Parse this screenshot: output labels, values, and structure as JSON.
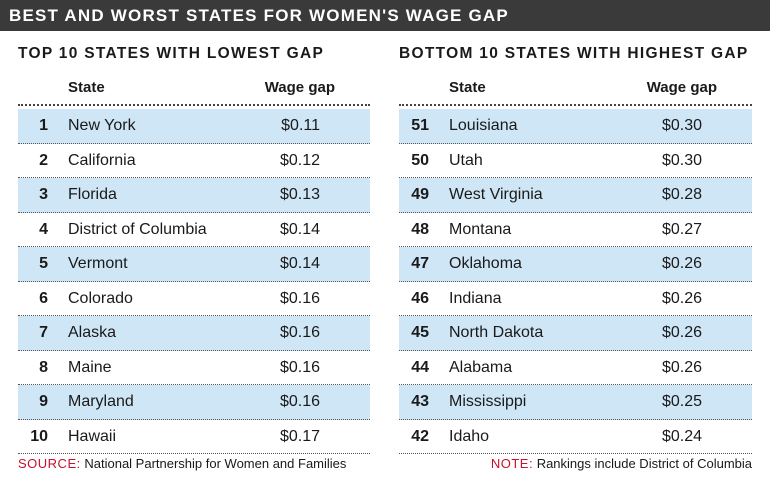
{
  "title": "BEST AND WORST STATES FOR WOMEN'S WAGE GAP",
  "colors": {
    "shade": "#cfe6f6",
    "title_bg": "#3a3a3a",
    "note_red": "#c8102e"
  },
  "left_panel": {
    "title": "TOP 10 STATES WITH LOWEST GAP",
    "col_state": "State",
    "col_gap": "Wage gap",
    "rows": [
      {
        "rank": "1",
        "state": "New York",
        "gap": "$0.11"
      },
      {
        "rank": "2",
        "state": "California",
        "gap": "$0.12"
      },
      {
        "rank": "3",
        "state": "Florida",
        "gap": "$0.13"
      },
      {
        "rank": "4",
        "state": "District of Columbia",
        "gap": "$0.14"
      },
      {
        "rank": "5",
        "state": "Vermont",
        "gap": "$0.14"
      },
      {
        "rank": "6",
        "state": "Colorado",
        "gap": "$0.16"
      },
      {
        "rank": "7",
        "state": "Alaska",
        "gap": "$0.16"
      },
      {
        "rank": "8",
        "state": "Maine",
        "gap": "$0.16"
      },
      {
        "rank": "9",
        "state": "Maryland",
        "gap": "$0.16"
      },
      {
        "rank": "10",
        "state": "Hawaii",
        "gap": "$0.17"
      }
    ]
  },
  "right_panel": {
    "title": "BOTTOM 10 STATES WITH HIGHEST GAP",
    "col_state": "State",
    "col_gap": "Wage gap",
    "rows": [
      {
        "rank": "51",
        "state": "Louisiana",
        "gap": "$0.30"
      },
      {
        "rank": "50",
        "state": "Utah",
        "gap": "$0.30"
      },
      {
        "rank": "49",
        "state": "West Virginia",
        "gap": "$0.28"
      },
      {
        "rank": "48",
        "state": "Montana",
        "gap": "$0.27"
      },
      {
        "rank": "47",
        "state": "Oklahoma",
        "gap": "$0.26"
      },
      {
        "rank": "46",
        "state": "Indiana",
        "gap": "$0.26"
      },
      {
        "rank": "45",
        "state": "North Dakota",
        "gap": "$0.26"
      },
      {
        "rank": "44",
        "state": "Alabama",
        "gap": "$0.26"
      },
      {
        "rank": "43",
        "state": "Mississippi",
        "gap": "$0.25"
      },
      {
        "rank": "42",
        "state": "Idaho",
        "gap": "$0.24"
      }
    ]
  },
  "footer": {
    "source_label": "SOURCE:",
    "source_text": "National Partnership for Women and Families",
    "note_label": "NOTE:",
    "note_text": "Rankings include District of Columbia"
  }
}
